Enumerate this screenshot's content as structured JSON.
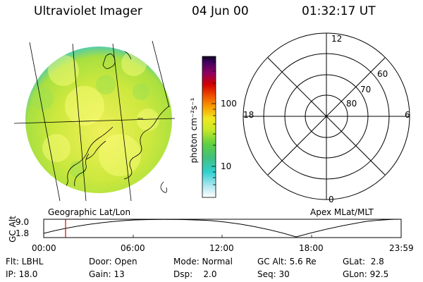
{
  "header": {
    "title": "Ultraviolet Imager",
    "date": "04 Jun 00",
    "time": "01:32:17 UT"
  },
  "colorbar": {
    "label": "photon cm⁻²s⁻¹",
    "ticks": [
      "100",
      "10"
    ]
  },
  "polar": {
    "mlt_labels": [
      "12",
      "18",
      "6",
      "0"
    ],
    "lat_labels": [
      "60",
      "70",
      "80"
    ]
  },
  "panel_labels": {
    "left": "Geographic Lat/Lon",
    "right": "Apex MLat/MLT"
  },
  "timeline": {
    "axis_title": "GC Alt",
    "y_ticks": [
      "9.0",
      "1.8"
    ],
    "x_ticks": [
      "00:00",
      "06:00",
      "12:00",
      "18:00",
      "23:59"
    ],
    "marker_time": "01:32"
  },
  "info": {
    "flt": "Flt: LBHL",
    "door": "Door: Open",
    "mode": "Mode: Normal",
    "gcalt": "GC Alt: 5.6 Re",
    "glat": "GLat:  2.8",
    "ip": "IP: 18.0",
    "gain": "Gain: 13",
    "dsp": "Dsp:    2.0",
    "seq": "Seq: 30",
    "glon": "GLon: 92.5"
  },
  "colors": {
    "disk_main": "#c8e63c",
    "disk_bright": "#e8ee60",
    "disk_edge": "#40c8c8",
    "marker": "#e00000"
  }
}
